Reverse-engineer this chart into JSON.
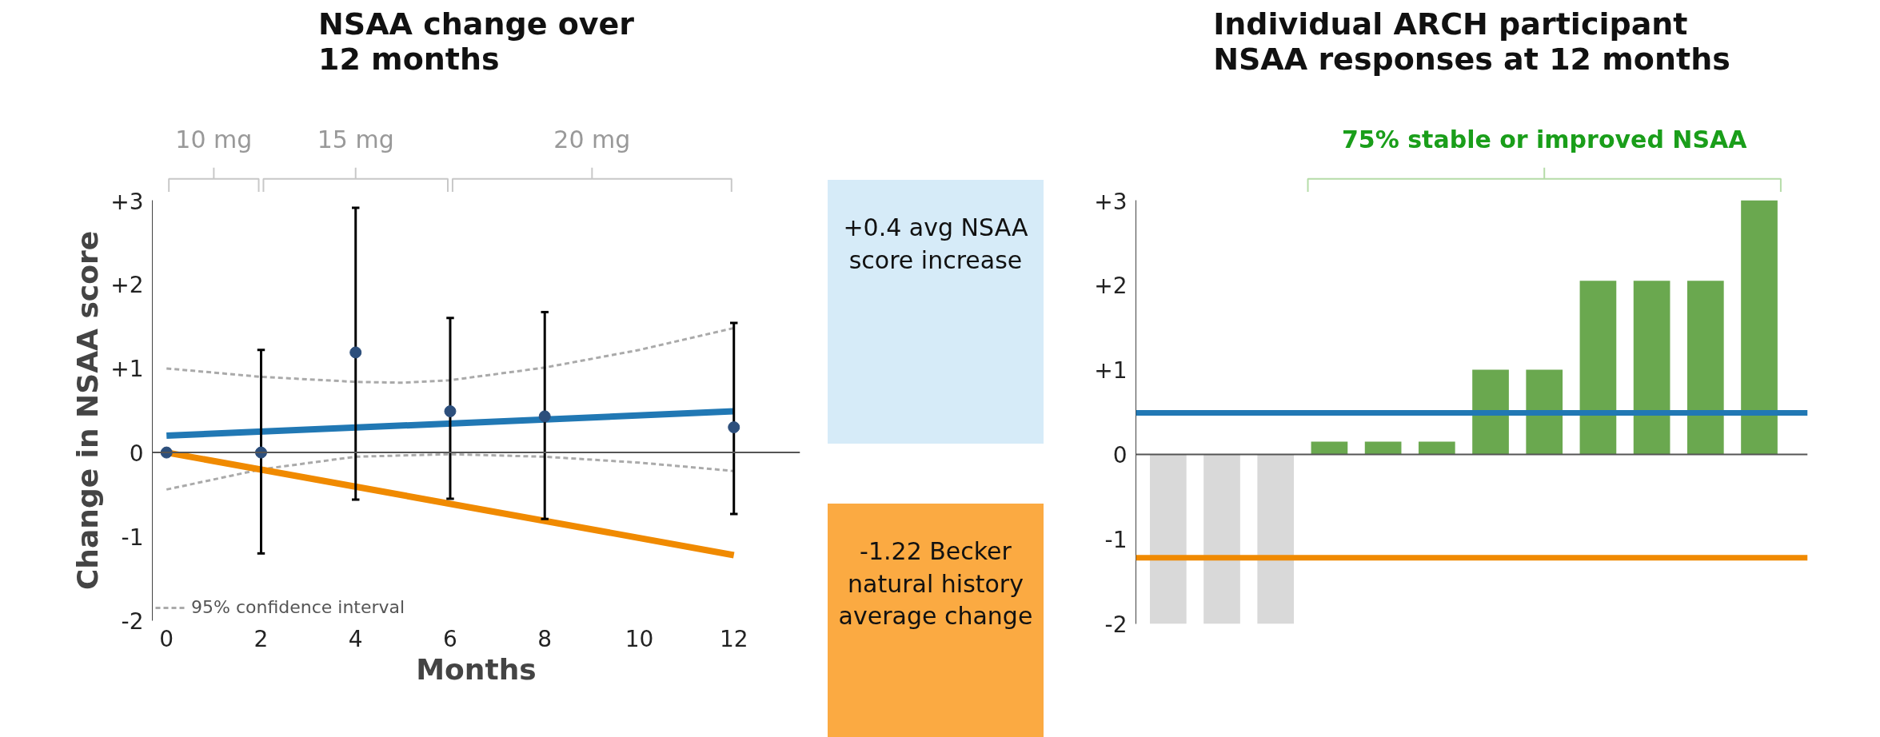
{
  "chart_data": [
    {
      "type": "scatter",
      "title": "NSAA change over\n12 months",
      "xlabel": "Months",
      "ylabel": "Change in NSAA score",
      "xlim": [
        0,
        13.4
      ],
      "ylim": [
        -2,
        3
      ],
      "xticks": [
        0,
        2,
        4,
        6,
        8,
        10,
        12
      ],
      "yticks": [
        {
          "value": -2,
          "label": "-2"
        },
        {
          "value": -1,
          "label": "-1"
        },
        0,
        {
          "value": 1,
          "label": "+1"
        },
        {
          "value": 2,
          "label": "+2"
        },
        {
          "value": 3,
          "label": "+3"
        }
      ],
      "legend": "bottom left",
      "ref_lines": [
        {
          "axis": "y",
          "value": 0,
          "color": "#555555"
        }
      ],
      "annotations": [
        "10 mg",
        "15 mg",
        "20 mg",
        "+0.4 avg NSAA score increase",
        "-1.22 Becker natural history average change"
      ],
      "series": [
        {
          "type": "line",
          "name": "95% confidence interval",
          "color": "#aaaaaa",
          "line_style": "dashed",
          "x": [
            0,
            2,
            4,
            5,
            6,
            8,
            10,
            12
          ],
          "values": [
            1.0,
            0.9,
            0.84,
            0.83,
            0.86,
            1.01,
            1.22,
            1.48
          ]
        },
        {
          "type": "line",
          "color": "#aaaaaa",
          "line_style": "dashed",
          "x": [
            0,
            2,
            4,
            6,
            8,
            10,
            12
          ],
          "values": [
            -0.44,
            -0.2,
            -0.05,
            -0.02,
            -0.05,
            -0.12,
            -0.22
          ]
        },
        {
          "type": "line",
          "color": "#2178b4",
          "x": [
            0,
            12
          ],
          "values": [
            0.2,
            0.49
          ]
        },
        {
          "type": "line",
          "color": "#f08a00",
          "x": [
            0,
            12
          ],
          "values": [
            0,
            -1.22
          ]
        },
        {
          "type": "scatter",
          "color": "#2d4f7c",
          "marker": "circle",
          "x": [
            0,
            2,
            4,
            6,
            8,
            12
          ],
          "values": [
            0,
            0,
            1.19,
            0.49,
            0.43,
            0.3
          ],
          "errors": [
            null,
            [
              -1.2,
              1.22
            ],
            [
              -0.56,
              2.91
            ],
            [
              -0.55,
              1.6
            ],
            [
              -0.79,
              1.67
            ],
            [
              -0.73,
              1.54
            ]
          ]
        }
      ]
    },
    {
      "type": "bar",
      "title": "Individual ARCH participant\nNSAA responses at 12 months",
      "categories": [
        null,
        null,
        null,
        null,
        null,
        null,
        null,
        null,
        null,
        null,
        null,
        null
      ],
      "values": [
        -2,
        -2,
        -2,
        0.15,
        0.15,
        0.15,
        1,
        1,
        2.05,
        2.05,
        2.05,
        3
      ],
      "colors": [
        "#d9d9d9",
        "#d9d9d9",
        "#d9d9d9",
        "#6aa84f",
        "#6aa84f",
        "#6aa84f",
        "#6aa84f",
        "#6aa84f",
        "#6aa84f",
        "#6aa84f",
        "#6aa84f",
        "#6aa84f"
      ],
      "ylim": [
        -2,
        3
      ],
      "yticks": [
        {
          "value": -2,
          "label": "-2"
        },
        {
          "value": -1,
          "label": "-1"
        },
        0,
        {
          "value": 1,
          "label": "+1"
        },
        {
          "value": 2,
          "label": "+2"
        },
        {
          "value": 3,
          "label": "+3"
        }
      ],
      "tick_labels": "y",
      "ref_lines": [
        {
          "axis": "y",
          "value": 0,
          "color": "#555555"
        },
        {
          "axis": "y",
          "value": 0.49,
          "color": "#2178b4"
        },
        {
          "axis": "y",
          "value": -1.22,
          "color": "#f08a00"
        }
      ],
      "annotations": [
        "75% stable or improved NSAA"
      ]
    }
  ]
}
